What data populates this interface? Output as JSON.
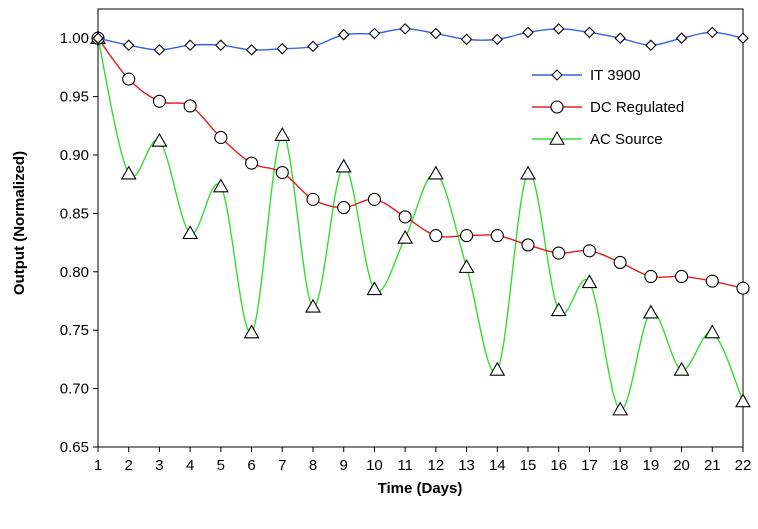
{
  "chart_data": {
    "type": "line",
    "title": "",
    "xlabel": "Time (Days)",
    "ylabel": "Output (Normalized)",
    "x": [
      1,
      2,
      3,
      4,
      5,
      6,
      7,
      8,
      9,
      10,
      11,
      12,
      13,
      14,
      15,
      16,
      17,
      18,
      19,
      20,
      21,
      22
    ],
    "xlim": [
      1,
      22
    ],
    "ylim": [
      0.65,
      1.025
    ],
    "yticks": [
      "0.65",
      "0.70",
      "0.75",
      "0.80",
      "0.85",
      "0.90",
      "0.95",
      "1.00"
    ],
    "ytick_values": [
      0.65,
      0.7,
      0.75,
      0.8,
      0.85,
      0.9,
      0.95,
      1.0
    ],
    "grid": false,
    "legend_position": "top-right",
    "series": [
      {
        "name": "IT 3900",
        "color": "#3b5fe0",
        "marker": "diamond",
        "values": [
          1.0,
          0.994,
          0.99,
          0.994,
          0.994,
          0.99,
          0.991,
          0.993,
          1.003,
          1.004,
          1.008,
          1.004,
          0.999,
          0.999,
          1.005,
          1.008,
          1.005,
          1.0,
          0.994,
          1.0,
          1.005,
          1.0
        ]
      },
      {
        "name": "DC Regulated",
        "color": "#e02020",
        "marker": "circle",
        "values": [
          1.0,
          0.965,
          0.946,
          0.942,
          0.915,
          0.893,
          0.885,
          0.862,
          0.855,
          0.862,
          0.847,
          0.831,
          0.831,
          0.831,
          0.823,
          0.816,
          0.818,
          0.808,
          0.796,
          0.796,
          0.792,
          0.786
        ]
      },
      {
        "name": "AC Source",
        "color": "#33dd33",
        "marker": "triangle",
        "values": [
          1.0,
          0.884,
          0.912,
          0.833,
          0.873,
          0.748,
          0.917,
          0.77,
          0.89,
          0.785,
          0.829,
          0.884,
          0.804,
          0.716,
          0.884,
          0.767,
          0.791,
          0.682,
          0.765,
          0.716,
          0.748,
          0.689
        ]
      }
    ]
  }
}
